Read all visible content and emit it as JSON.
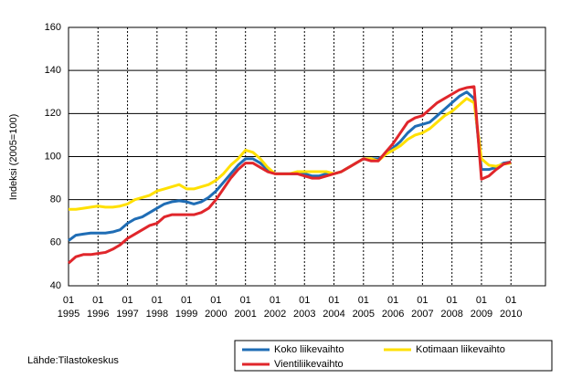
{
  "chart_data": {
    "type": "line",
    "y_label": "Indeksi (2005=100)",
    "source": "Lähde:Tilastokeskus",
    "x": [
      1995,
      1995.25,
      1995.5,
      1995.75,
      1996,
      1996.25,
      1996.5,
      1996.75,
      1997,
      1997.25,
      1997.5,
      1997.75,
      1998,
      1998.25,
      1998.5,
      1998.75,
      1999,
      1999.25,
      1999.5,
      1999.75,
      2000,
      2000.25,
      2000.5,
      2000.75,
      2001,
      2001.25,
      2001.5,
      2001.75,
      2002,
      2002.25,
      2002.5,
      2002.75,
      2003,
      2003.25,
      2003.5,
      2003.75,
      2004,
      2004.25,
      2004.5,
      2004.75,
      2005,
      2005.25,
      2005.5,
      2005.75,
      2006,
      2006.25,
      2006.5,
      2006.75,
      2007,
      2007.25,
      2007.5,
      2007.75,
      2008,
      2008.25,
      2008.5,
      2008.75,
      2009,
      2009.25,
      2009.5,
      2009.75,
      2010
    ],
    "series": [
      {
        "name": "Koko liikevaihto",
        "color": "#1f6db5",
        "values": [
          61,
          63.5,
          64,
          64.5,
          64.5,
          64.5,
          65,
          66,
          69,
          71,
          72,
          74,
          76,
          78,
          79,
          79.5,
          79,
          78,
          79,
          81,
          84,
          88,
          92,
          96,
          99,
          99,
          97,
          94,
          92,
          92,
          92,
          92,
          92,
          91,
          91,
          92,
          92,
          93,
          95,
          97,
          99,
          99,
          99,
          101,
          104,
          107,
          111,
          114,
          115,
          116,
          119,
          122,
          125,
          128,
          130,
          127,
          94,
          94,
          95,
          97,
          97.5
        ]
      },
      {
        "name": "Kotimaan liikevaihto",
        "color": "#ffe000",
        "values": [
          75.5,
          75.5,
          76,
          76.5,
          77,
          76.5,
          76.5,
          77,
          78,
          80,
          81,
          82,
          84,
          85,
          86,
          87,
          85,
          85,
          86,
          87,
          89,
          92,
          96,
          99,
          103,
          102,
          99,
          95,
          92,
          92,
          92,
          93,
          93,
          93,
          93,
          93,
          92,
          93,
          95,
          97,
          99,
          99,
          98,
          101,
          103,
          105,
          108,
          110,
          111,
          113,
          116,
          119,
          121,
          124,
          127,
          125,
          99,
          96,
          95.5,
          96.5,
          97
        ]
      },
      {
        "name": "Vientiliikevaihto",
        "color": "#e0262b",
        "values": [
          50.5,
          53.5,
          54.5,
          54.5,
          55,
          55.5,
          57,
          59,
          62,
          64,
          66,
          68,
          69,
          72,
          73,
          73,
          73,
          73,
          74,
          76,
          80,
          85,
          90,
          94,
          97,
          97,
          95,
          93,
          92,
          92,
          92,
          92,
          91,
          90,
          90,
          91,
          92,
          93,
          95,
          97,
          99,
          98,
          98,
          102,
          106,
          111,
          116,
          118,
          119,
          122,
          125,
          127,
          129,
          131,
          132,
          132.5,
          89.5,
          91,
          94,
          96.5,
          97.5
        ]
      }
    ],
    "xlim": [
      1995,
      2011.17
    ],
    "xticks": [
      {
        "value": 1995,
        "label": "01 1995"
      },
      {
        "value": 1996,
        "label": "01 1996"
      },
      {
        "value": 1997,
        "label": "01 1997"
      },
      {
        "value": 1998,
        "label": "01 1998"
      },
      {
        "value": 1999,
        "label": "01 1999"
      },
      {
        "value": 2000,
        "label": "01 2000"
      },
      {
        "value": 2001,
        "label": "01 2001"
      },
      {
        "value": 2002,
        "label": "01 2002"
      },
      {
        "value": 2003,
        "label": "01 2003"
      },
      {
        "value": 2004,
        "label": "01 2004"
      },
      {
        "value": 2005,
        "label": "01 2005"
      },
      {
        "value": 2006,
        "label": "01 2006"
      },
      {
        "value": 2007,
        "label": "01 2007"
      },
      {
        "value": 2008,
        "label": "01 2008"
      },
      {
        "value": 2009,
        "label": "01 2009"
      },
      {
        "value": 2010,
        "label": "01 2010"
      }
    ],
    "ylim": [
      40,
      160
    ],
    "yticks": [
      40,
      60,
      80,
      100,
      120,
      140,
      160
    ],
    "grid": true,
    "legend": "bottom"
  }
}
